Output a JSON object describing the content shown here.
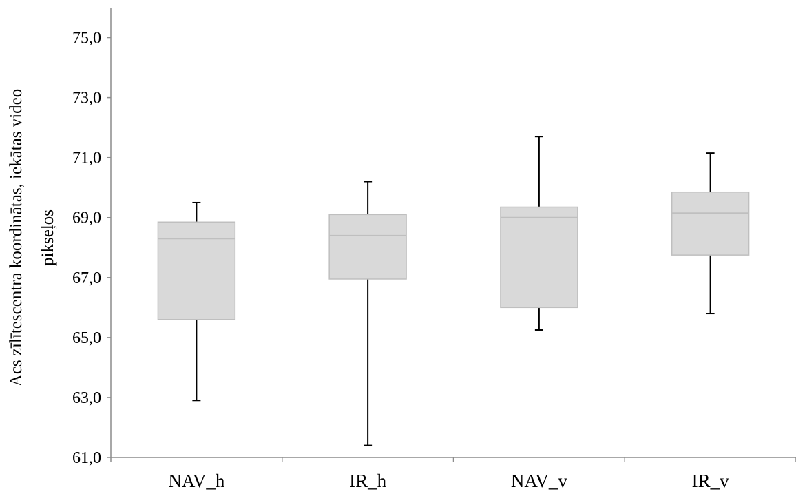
{
  "chart_data": {
    "type": "boxplot",
    "title": "",
    "xlabel": "",
    "ylabel_line1": "Acs zīlītescentra koordinātas, iekātas  video",
    "ylabel_line2": "pikseļos",
    "ylim": [
      61.0,
      76.0
    ],
    "yticks": [
      "61,0",
      "63,0",
      "65,0",
      "67,0",
      "69,0",
      "71,0",
      "73,0",
      "75,0"
    ],
    "categories": [
      "NAV_h",
      "IR_h",
      "NAV_v",
      "IR_v"
    ],
    "boxes": [
      {
        "label": "NAV_h",
        "min": 62.9,
        "q1": 65.6,
        "median": 68.3,
        "q3": 68.85,
        "max": 69.5
      },
      {
        "label": "IR_h",
        "min": 61.4,
        "q1": 66.95,
        "median": 68.4,
        "q3": 69.1,
        "max": 70.2
      },
      {
        "label": "NAV_v",
        "min": 65.25,
        "q1": 66.0,
        "median": 69.0,
        "q3": 69.35,
        "max": 71.7
      },
      {
        "label": "IR_v",
        "min": 65.8,
        "q1": 67.75,
        "median": 69.15,
        "q3": 69.85,
        "max": 71.15
      }
    ],
    "grid": false,
    "legend": "none",
    "colors": {
      "box_fill": "#d9d9d9",
      "box_stroke": "#bfbfbf",
      "whisker": "#000000",
      "axis": "#8c8c8c"
    }
  }
}
